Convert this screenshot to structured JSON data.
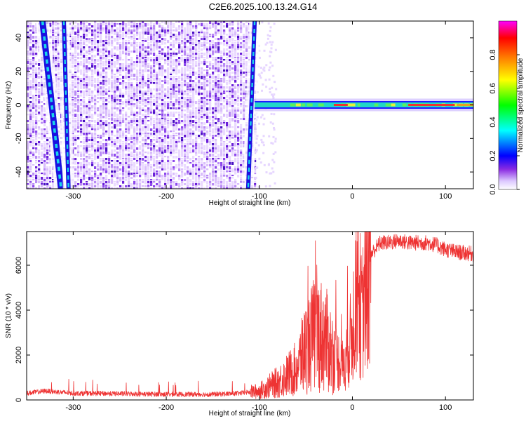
{
  "title": "C2E6.2025.100.13.24.G14",
  "chart_data": [
    {
      "type": "heatmap",
      "xlabel": "Height of straight line (km)",
      "ylabel": "Frequency (Hz)",
      "xlim": [
        -350,
        130
      ],
      "ylim": [
        -50,
        50
      ],
      "xticks": [
        -300,
        -200,
        -100,
        0,
        100
      ],
      "yticks": [
        -40,
        -20,
        0,
        20,
        40
      ],
      "colorbar": {
        "label": "Normalized spectral amplitude",
        "range": [
          0,
          1
        ],
        "ticks": [
          0.0,
          0.2,
          0.4,
          0.6,
          0.8
        ],
        "colors": [
          "#ffffff",
          "#dcc8ff",
          "#8a2be2",
          "#0000ff",
          "#00ffff",
          "#00ff00",
          "#ffff00",
          "#ff8000",
          "#ff0000",
          "#ff00ff"
        ]
      },
      "features": {
        "noise_region_x": [
          -350,
          -105
        ],
        "carrier_line_x": [
          -105,
          130
        ],
        "carrier_frequency_hz": 0,
        "streak_1": {
          "x_at_top": -333,
          "x_at_bottom": -313
        },
        "streak_2": {
          "x_at_top": -310,
          "x_at_bottom": -305
        },
        "streak_3": {
          "x_at_top": -105,
          "x_at_bottom": -112
        }
      }
    },
    {
      "type": "line",
      "xlabel": "Height of straight line (km)",
      "ylabel": "SNR (10 * v/v)",
      "xlim": [
        -350,
        130
      ],
      "ylim": [
        0,
        7500
      ],
      "xticks": [
        -300,
        -200,
        -100,
        0,
        100
      ],
      "yticks": [
        0,
        2000,
        4000,
        6000
      ],
      "color": "#ee3333",
      "trend": {
        "x": [
          -350,
          -330,
          -300,
          -250,
          -200,
          -150,
          -120,
          -100,
          -80,
          -60,
          -50,
          -40,
          -30,
          -20,
          -10,
          0,
          5,
          10,
          15,
          20,
          30,
          40,
          50,
          60,
          70,
          80,
          90,
          100,
          110,
          120,
          130
        ],
        "y": [
          300,
          400,
          300,
          280,
          250,
          250,
          300,
          400,
          800,
          1400,
          2300,
          3000,
          2800,
          2000,
          1500,
          3000,
          5500,
          3500,
          5500,
          6500,
          7000,
          7000,
          7100,
          7000,
          7000,
          7000,
          6900,
          6700,
          6600,
          6550,
          6500
        ]
      }
    }
  ]
}
